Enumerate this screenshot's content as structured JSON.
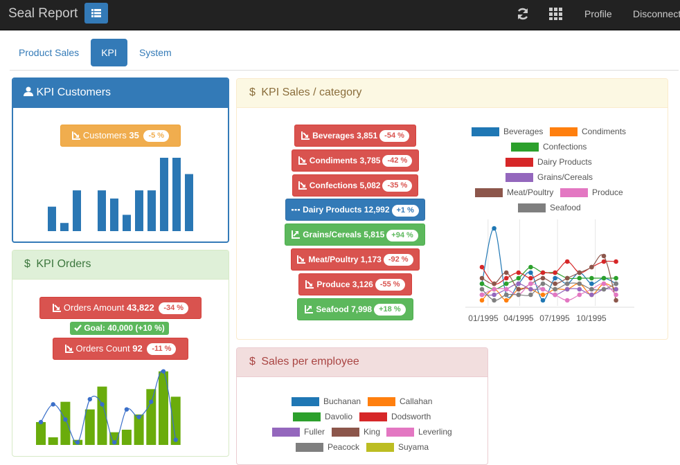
{
  "header": {
    "brand": "Seal Report",
    "menu_icon": "list-icon",
    "refresh_icon": "refresh-icon",
    "apps_icon": "grid-icon",
    "profile_label": "Profile",
    "disconnect_label": "Disconnect"
  },
  "tabs": [
    {
      "label": "Product Sales",
      "active": false
    },
    {
      "label": "KPI",
      "active": true
    },
    {
      "label": "System",
      "active": false
    }
  ],
  "kpi_customers": {
    "title": "KPI Customers",
    "title_icon": "user-icon",
    "kpi": {
      "label": "Customers",
      "value": "35",
      "delta": "-5 %",
      "icon": "trend-down-icon"
    },
    "chart_data": {
      "type": "bar",
      "values": [
        12,
        4,
        20,
        0,
        20,
        16,
        8,
        20,
        20,
        36,
        36,
        28
      ],
      "color": "#2a77b4",
      "ylim": [
        0,
        36
      ]
    }
  },
  "kpi_orders": {
    "title": "KPI Orders",
    "title_icon": "dollar-icon",
    "amount": {
      "label": "Orders Amount",
      "value": "43,822",
      "delta": "-34 %",
      "icon": "trend-down-icon"
    },
    "goal": {
      "label": "Goal: 40,000 (+10 %)",
      "icon": "check-icon"
    },
    "count": {
      "label": "Orders Count",
      "value": "92",
      "delta": "-11 %",
      "icon": "trend-down-icon"
    },
    "chart_data": {
      "type": "bar",
      "values": [
        9,
        3,
        17,
        2,
        14,
        23,
        5,
        6,
        12,
        22,
        29,
        19
      ],
      "line": [
        9,
        16,
        10,
        1,
        18,
        16,
        1,
        14,
        11,
        17,
        29,
        2
      ],
      "bar_color": "#6aac0c",
      "line_color": "#3a6fc9",
      "ylim": [
        0,
        30
      ]
    }
  },
  "kpi_sales": {
    "title": "KPI Sales / category",
    "title_icon": "dollar-icon",
    "items": [
      {
        "label": "Beverages",
        "value": "3,851",
        "delta": "-54 %",
        "style": "red",
        "icon": "trend-down-icon"
      },
      {
        "label": "Condiments",
        "value": "3,785",
        "delta": "-42 %",
        "style": "red",
        "icon": "trend-down-icon"
      },
      {
        "label": "Confections",
        "value": "5,082",
        "delta": "-35 %",
        "style": "red",
        "icon": "trend-down-icon"
      },
      {
        "label": "Dairy Products",
        "value": "12,992",
        "delta": "+1 %",
        "style": "blue",
        "icon": "flat-icon"
      },
      {
        "label": "Grains/Cereals",
        "value": "5,815",
        "delta": "+94 %",
        "style": "green",
        "icon": "trend-up-icon"
      },
      {
        "label": "Meat/Poultry",
        "value": "1,173",
        "delta": "-92 %",
        "style": "red",
        "icon": "trend-down-icon"
      },
      {
        "label": "Produce",
        "value": "3,126",
        "delta": "-55 %",
        "style": "red",
        "icon": "trend-down-icon"
      },
      {
        "label": "Seafood",
        "value": "7,998",
        "delta": "+18 %",
        "style": "green",
        "icon": "trend-up-icon"
      }
    ],
    "chart_data": {
      "type": "line",
      "x_ticks": [
        "01/1995",
        "04/1995",
        "07/1995",
        "10/1995"
      ],
      "series": [
        {
          "name": "Beverages",
          "color": "#1f77b4",
          "values": [
            4,
            14,
            2,
            4,
            6,
            1,
            5,
            4,
            6,
            4,
            5,
            4
          ]
        },
        {
          "name": "Condiments",
          "color": "#ff7f0e",
          "values": [
            1,
            3,
            1,
            3,
            3,
            2,
            3,
            3,
            4,
            2,
            4,
            3
          ]
        },
        {
          "name": "Confections",
          "color": "#2ca02c",
          "values": [
            4,
            3,
            4,
            5,
            7,
            6,
            6,
            5,
            5,
            5,
            5,
            5
          ]
        },
        {
          "name": "Dairy Products",
          "color": "#d62728",
          "values": [
            7,
            4,
            5,
            6,
            5,
            6,
            6,
            8,
            6,
            7,
            8,
            8
          ]
        },
        {
          "name": "Grains/Cereals",
          "color": "#9467bd",
          "values": [
            2,
            2,
            3,
            4,
            3,
            3,
            2,
            3,
            3,
            2,
            3,
            3
          ]
        },
        {
          "name": "Meat/Poultry",
          "color": "#8c564b",
          "values": [
            5,
            4,
            6,
            3,
            4,
            5,
            4,
            5,
            6,
            7,
            9,
            1
          ]
        },
        {
          "name": "Produce",
          "color": "#e377c2",
          "values": [
            2,
            3,
            3,
            2,
            4,
            3,
            2,
            1,
            2,
            3,
            4,
            2
          ]
        },
        {
          "name": "Seafood",
          "color": "#7f7f7f",
          "values": [
            3,
            1,
            2,
            2,
            2,
            4,
            3,
            4,
            4,
            3,
            3,
            4
          ]
        }
      ],
      "ylim": [
        0,
        15
      ]
    }
  },
  "sales_employee": {
    "title": "Sales per employee",
    "title_icon": "dollar-icon",
    "legend": [
      {
        "name": "Buchanan",
        "color": "#1f77b4"
      },
      {
        "name": "Callahan",
        "color": "#ff7f0e"
      },
      {
        "name": "Davolio",
        "color": "#2ca02c"
      },
      {
        "name": "Dodsworth",
        "color": "#d62728"
      },
      {
        "name": "Fuller",
        "color": "#9467bd"
      },
      {
        "name": "King",
        "color": "#8c564b"
      },
      {
        "name": "Leverling",
        "color": "#e377c2"
      },
      {
        "name": "Peacock",
        "color": "#7f7f7f"
      },
      {
        "name": "Suyama",
        "color": "#bcbd22"
      }
    ]
  }
}
